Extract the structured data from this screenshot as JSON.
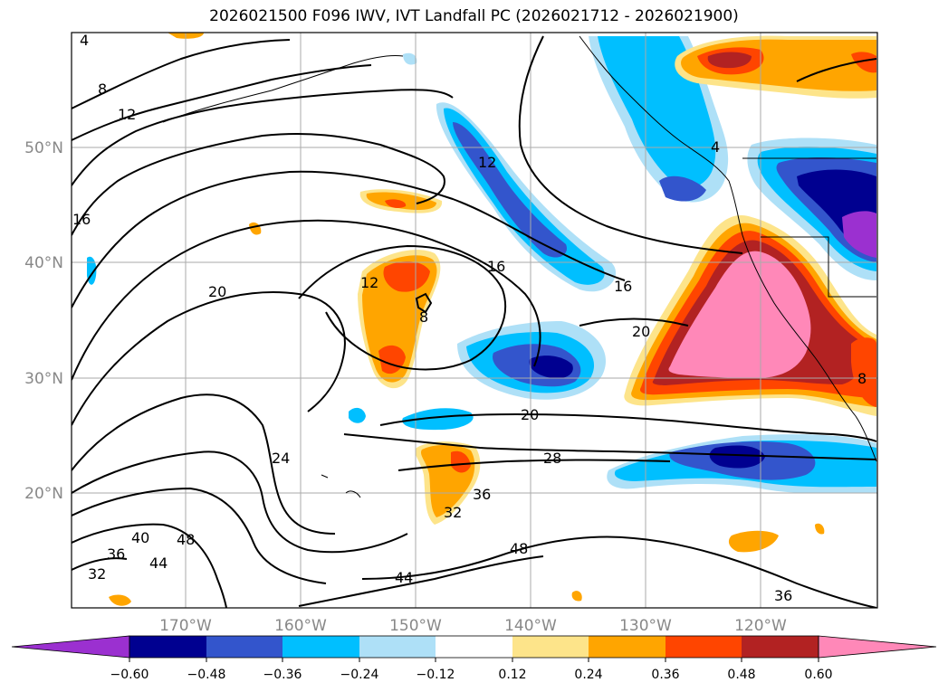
{
  "title": "2026021500 F096 IWV, IVT Landfall PC (2026021712 - 2026021900)",
  "map": {
    "lat_ticks": [
      "50°N",
      "40°N",
      "30°N",
      "20°N"
    ],
    "lon_ticks": [
      "170°W",
      "160°W",
      "150°W",
      "140°W",
      "130°W",
      "120°W"
    ],
    "contour_labels": [
      "4",
      "8",
      "12",
      "16",
      "12",
      "16",
      "16",
      "20",
      "20",
      "8",
      "12",
      "24",
      "20",
      "28",
      "32",
      "36",
      "36",
      "40",
      "44",
      "48",
      "48",
      "32",
      "44",
      "36",
      "4",
      "8"
    ]
  },
  "colorbar": {
    "ticks": [
      "−0.60",
      "−0.48",
      "−0.36",
      "−0.24",
      "−0.12",
      "0.12",
      "0.24",
      "0.36",
      "0.48",
      "0.60"
    ],
    "colors": [
      "#9b30d0",
      "#000090",
      "#3355cc",
      "#00bfff",
      "#aee0f7",
      "#ffffff",
      "#fde48a",
      "#ffa500",
      "#ff4500",
      "#b22222",
      "#ff7fae",
      "#ff88b8"
    ]
  }
}
